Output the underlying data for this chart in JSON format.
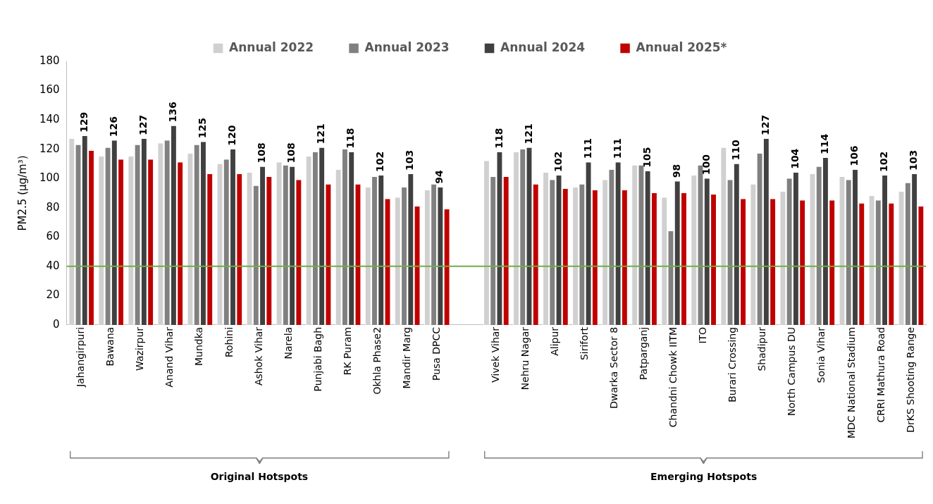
{
  "chart_data": {
    "type": "bar",
    "ylabel": "PM2.5 (µg/m³)",
    "categories": [
      "Jahangirpuri",
      "Bawana",
      "Wazirpur",
      "Anand Vihar",
      "Mundka",
      "Rohini",
      "Ashok Vihar",
      "Narela",
      "Punjabi Bagh",
      "RK Puram",
      "Okhla Phase2",
      "Mandir Marg",
      "Pusa DPCC",
      null,
      "Vivek Vihar",
      "Nehru Nagar",
      "Alipur",
      "Sirifort",
      "Dwarka Sector 8",
      "Patparganj",
      "Chandni Chowk IITM",
      "ITO",
      "Burari Crossing",
      "Shadipur",
      "North Campus DU",
      "Sonia Vihar",
      "MDC National Stadium",
      "CRRI Mathura Road",
      "DrKS Shooting Range"
    ],
    "series": [
      {
        "name": "Annual 2022",
        "color": "#d0d0d0",
        "values": [
          127,
          115,
          115,
          124,
          117,
          110,
          104,
          111,
          115,
          106,
          94,
          87,
          92,
          null,
          112,
          118,
          104,
          94,
          99,
          109,
          87,
          102,
          121,
          96,
          91,
          103,
          101,
          88,
          91
        ]
      },
      {
        "name": "Annual 2023",
        "color": "#808080",
        "values": [
          123,
          121,
          123,
          126,
          123,
          113,
          95,
          109,
          118,
          120,
          101,
          94,
          96,
          null,
          101,
          120,
          99,
          96,
          106,
          109,
          64,
          109,
          99,
          117,
          100,
          108,
          99,
          85,
          97
        ]
      },
      {
        "name": "Annual 2024",
        "color": "#404040",
        "values": [
          129,
          126,
          127,
          136,
          125,
          120,
          108,
          108,
          121,
          118,
          102,
          103,
          94,
          null,
          118,
          121,
          102,
          111,
          111,
          105,
          98,
          100,
          110,
          127,
          104,
          114,
          106,
          102,
          103
        ],
        "value_labels": [
          "129",
          "126",
          "127",
          "136",
          "125",
          "120",
          "108",
          "108",
          "121",
          "118",
          "102",
          "103",
          "94",
          null,
          "118",
          "121",
          "102",
          "111",
          "111",
          "105",
          "98",
          "100",
          "110",
          "127",
          "104",
          "114",
          "106",
          "102",
          "103"
        ]
      },
      {
        "name": "Annual 2025*",
        "color": "#c00000",
        "values": [
          119,
          113,
          113,
          111,
          103,
          103,
          101,
          99,
          96,
          96,
          86,
          81,
          79,
          null,
          101,
          96,
          93,
          92,
          92,
          90,
          90,
          89,
          86,
          86,
          85,
          85,
          83,
          83,
          81
        ]
      }
    ],
    "ylim": [
      0,
      180
    ],
    "yticks": [
      0,
      20,
      40,
      60,
      80,
      100,
      120,
      140,
      160,
      180
    ],
    "grid": false,
    "legend": "top",
    "ref_lines": [
      {
        "axis": "y",
        "value": 40,
        "color": "#70ad47"
      }
    ],
    "annotations": [
      "Original Hotspots",
      "Emerging Hotspots"
    ]
  }
}
